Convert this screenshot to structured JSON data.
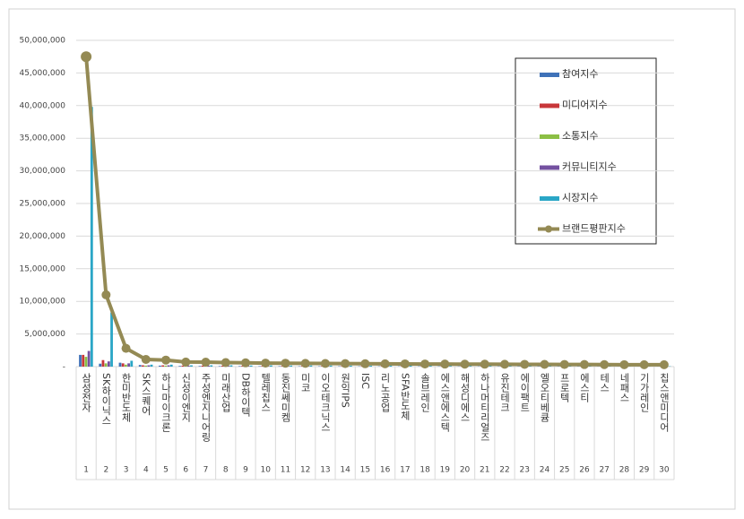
{
  "chart_data": {
    "type": "bar",
    "categories": [
      "삼성전자",
      "SK하이닉스",
      "한미반도체",
      "SK스퀘어",
      "하나마이크론",
      "신성이엔지",
      "주성엔지니어링",
      "미래산업",
      "DB하이텍",
      "텔레칩스",
      "동진쎄미켐",
      "미코",
      "이오테크닉스",
      "원익IPS",
      "ISC",
      "리노공업",
      "SFA반도체",
      "솔브레인",
      "에스앤에스텍",
      "해성디에스",
      "하나머티리얼즈",
      "유진테크",
      "에이팩트",
      "엘오티베큠",
      "프로텍",
      "에스티",
      "테스",
      "네패스",
      "기가레인",
      "칩스앤미디어"
    ],
    "ranks": [
      1,
      2,
      3,
      4,
      5,
      6,
      7,
      8,
      9,
      10,
      11,
      12,
      13,
      14,
      15,
      16,
      17,
      18,
      19,
      20,
      21,
      22,
      23,
      24,
      25,
      26,
      27,
      28,
      29,
      30
    ],
    "series": [
      {
        "name": "참여지수",
        "color": "#3f72b8",
        "values": [
          1800000,
          450000,
          600000,
          250000,
          150000,
          100000,
          90000,
          80000,
          80000,
          70000,
          70000,
          60000,
          60000,
          60000,
          50000,
          50000,
          50000,
          50000,
          50000,
          40000,
          40000,
          40000,
          40000,
          40000,
          40000,
          40000,
          30000,
          30000,
          30000,
          30000
        ]
      },
      {
        "name": "미디어지수",
        "color": "#c8373a",
        "values": [
          1800000,
          1000000,
          500000,
          200000,
          200000,
          150000,
          150000,
          130000,
          120000,
          110000,
          110000,
          100000,
          100000,
          90000,
          90000,
          90000,
          80000,
          80000,
          80000,
          80000,
          70000,
          70000,
          70000,
          70000,
          60000,
          60000,
          60000,
          60000,
          60000,
          60000
        ]
      },
      {
        "name": "소통지수",
        "color": "#8cbf45",
        "values": [
          1500000,
          500000,
          300000,
          150000,
          150000,
          100000,
          100000,
          90000,
          80000,
          80000,
          80000,
          70000,
          70000,
          70000,
          60000,
          60000,
          60000,
          60000,
          60000,
          50000,
          50000,
          50000,
          50000,
          50000,
          50000,
          50000,
          50000,
          40000,
          40000,
          40000
        ]
      },
      {
        "name": "커뮤니티지수",
        "color": "#7451a0",
        "values": [
          2400000,
          800000,
          500000,
          200000,
          200000,
          150000,
          140000,
          120000,
          110000,
          100000,
          100000,
          100000,
          90000,
          90000,
          90000,
          80000,
          80000,
          80000,
          80000,
          80000,
          70000,
          70000,
          70000,
          70000,
          70000,
          60000,
          60000,
          60000,
          60000,
          60000
        ]
      },
      {
        "name": "시장지수",
        "color": "#2aa6c6",
        "values": [
          39800000,
          8300000,
          900000,
          300000,
          300000,
          200000,
          200000,
          200000,
          170000,
          180000,
          160000,
          170000,
          160000,
          150000,
          140000,
          150000,
          150000,
          130000,
          120000,
          120000,
          130000,
          120000,
          110000,
          100000,
          100000,
          80000,
          70000,
          50000,
          55000,
          50000
        ]
      },
      {
        "name": "브랜드평판지수",
        "color": "#948a54",
        "type": "line",
        "values": [
          47500000,
          11000000,
          2800000,
          1100000,
          1000000,
          700000,
          680000,
          620000,
          580000,
          540000,
          520000,
          500000,
          480000,
          460000,
          440000,
          430000,
          420000,
          400000,
          390000,
          380000,
          370000,
          360000,
          350000,
          340000,
          330000,
          320000,
          310000,
          300000,
          295000,
          290000
        ]
      }
    ],
    "ylim": [
      0,
      50000000
    ],
    "yticks": [
      {
        "value": 0,
        "label": "-"
      },
      {
        "value": 5000000,
        "label": "5,000,000"
      },
      {
        "value": 10000000,
        "label": "10,000,000"
      },
      {
        "value": 15000000,
        "label": "15,000,000"
      },
      {
        "value": 20000000,
        "label": "20,000,000"
      },
      {
        "value": 25000000,
        "label": "25,000,000"
      },
      {
        "value": 30000000,
        "label": "30,000,000"
      },
      {
        "value": 35000000,
        "label": "35,000,000"
      },
      {
        "value": 40000000,
        "label": "40,000,000"
      },
      {
        "value": 45000000,
        "label": "45,000,000"
      },
      {
        "value": 50000000,
        "label": "50,000,000"
      }
    ],
    "grid": true,
    "legend": "top-right"
  }
}
